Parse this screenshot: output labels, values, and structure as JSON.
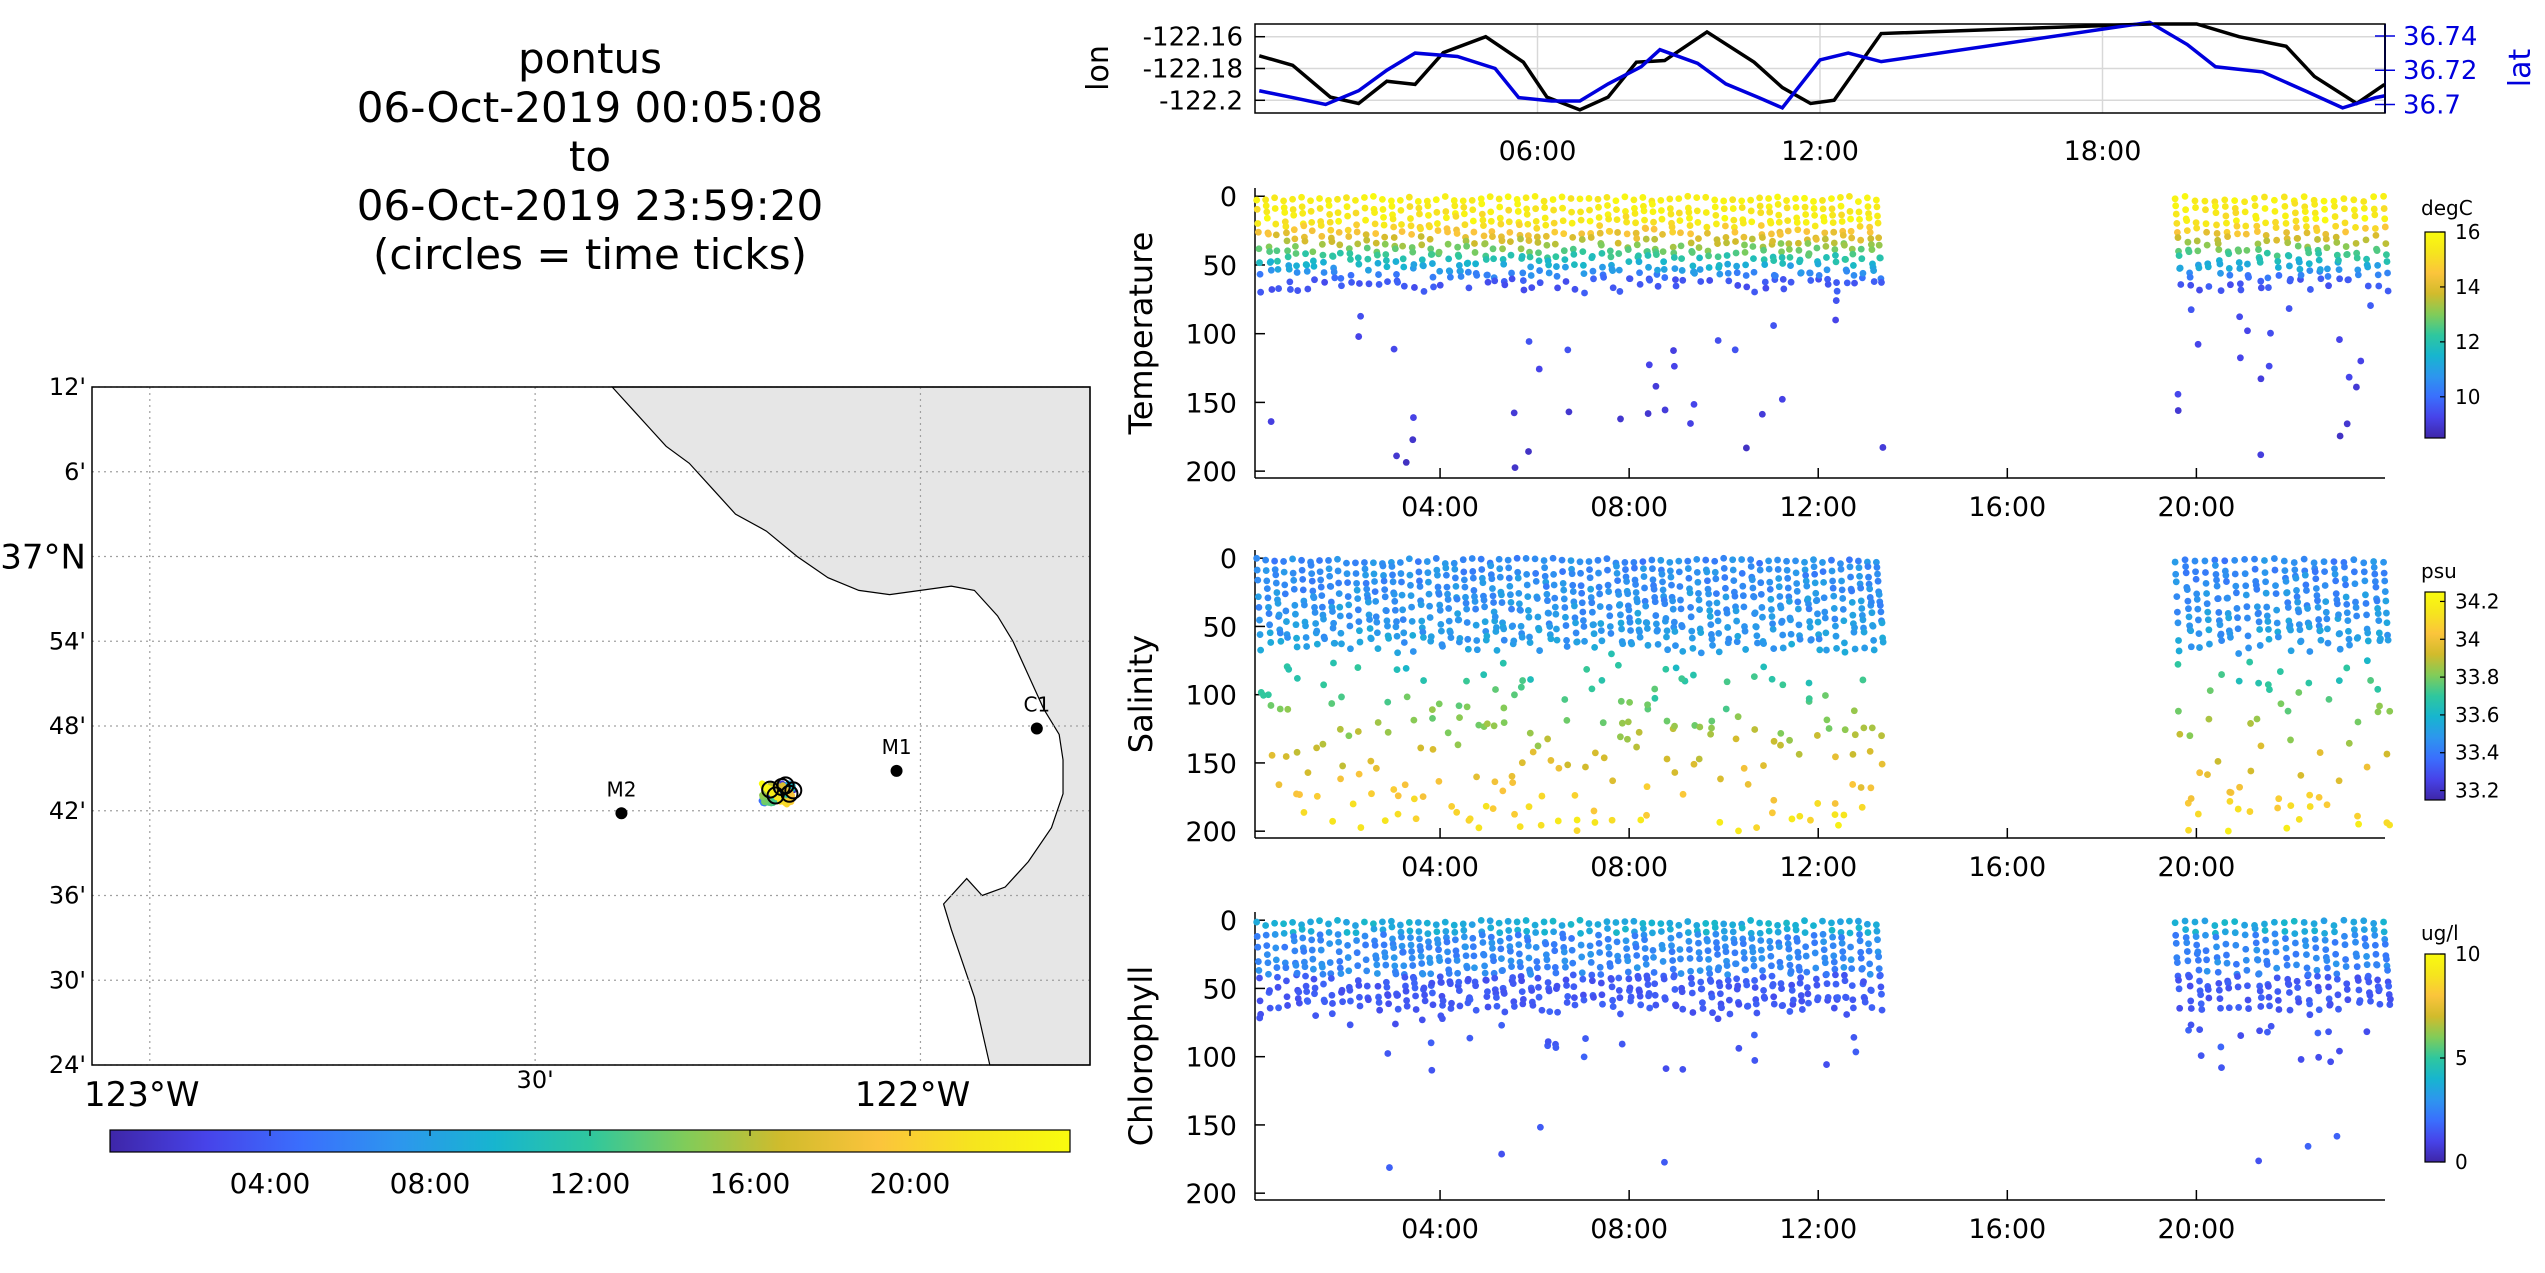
{
  "title": {
    "lines": [
      "pontus",
      "06-Oct-2019 00:05:08",
      "to",
      "06-Oct-2019 23:59:20",
      "(circles = time ticks)"
    ]
  },
  "colors": {
    "lon_line": "#000000",
    "lat_line": "#0000dd",
    "land": "#e6e6e6",
    "grid": "#a0a0a0",
    "colormap": [
      "#3e26a8",
      "#4743e9",
      "#3a6ffd",
      "#2d96ee",
      "#17b5cf",
      "#2fc79e",
      "#81cc59",
      "#d1bb2c",
      "#fbc43c",
      "#f6e51e",
      "#f9fb0e"
    ]
  },
  "map": {
    "lat_ticks": [
      "12'",
      "6'",
      "37°N",
      "54'",
      "48'",
      "42'",
      "36'",
      "30'",
      "24'"
    ],
    "lon_ticks": [
      "123°W",
      "30'",
      "122°W"
    ],
    "stations": [
      {
        "name": "M2",
        "lon": -122.388,
        "lat": 36.697
      },
      {
        "name": "M1",
        "lon": -122.031,
        "lat": 36.747
      },
      {
        "name": "C1",
        "lon": -121.849,
        "lat": 36.797
      }
    ],
    "colorbar_ticks": [
      "04:00",
      "08:00",
      "12:00",
      "16:00",
      "20:00"
    ]
  },
  "chart_data": [
    {
      "type": "line",
      "panel": "lon-lat",
      "ylabel": "lon",
      "ylabel_right": "lat",
      "x_ticks": [
        "06:00",
        "12:00",
        "18:00"
      ],
      "y_ticks": [
        "-122.16",
        "-122.18",
        "-122.2"
      ],
      "y_ticks_right": [
        "36.74",
        "36.72",
        "36.7"
      ],
      "ylim": [
        -122.208,
        -122.152
      ],
      "ylim_right": [
        36.695,
        36.747
      ],
      "xlim": [
        0,
        24
      ],
      "series": [
        {
          "name": "lon",
          "axis": "left",
          "x": [
            0.09,
            0.8,
            1.6,
            2.2,
            2.8,
            3.4,
            4.0,
            4.9,
            5.7,
            6.2,
            6.9,
            7.5,
            8.1,
            8.7,
            9.6,
            10.6,
            11.2,
            11.8,
            12.3,
            13.3,
            19.0,
            20.0,
            20.9,
            21.9,
            22.5,
            23.4,
            23.99
          ],
          "y": [
            -122.172,
            -122.178,
            -122.198,
            -122.202,
            -122.188,
            -122.19,
            -122.17,
            -122.16,
            -122.176,
            -122.198,
            -122.206,
            -122.198,
            -122.176,
            -122.175,
            -122.157,
            -122.176,
            -122.192,
            -122.202,
            -122.2,
            -122.158,
            -122.152,
            -122.152,
            -122.16,
            -122.166,
            -122.185,
            -122.202,
            -122.19
          ]
        },
        {
          "name": "lat",
          "axis": "right",
          "x": [
            0.09,
            0.8,
            1.5,
            2.2,
            2.8,
            3.4,
            4.3,
            5.1,
            5.6,
            6.3,
            6.9,
            7.5,
            8.2,
            8.6,
            9.4,
            10.0,
            10.7,
            11.2,
            12.0,
            12.6,
            13.3,
            19.0,
            19.8,
            20.4,
            21.4,
            22.3,
            23.1,
            23.8,
            23.99
          ],
          "y": [
            36.708,
            36.704,
            36.7,
            36.708,
            36.72,
            36.73,
            36.728,
            36.721,
            36.704,
            36.702,
            36.702,
            36.712,
            36.722,
            36.732,
            36.724,
            36.712,
            36.704,
            36.698,
            36.726,
            36.73,
            36.725,
            36.748,
            36.735,
            36.722,
            36.719,
            36.708,
            36.698,
            36.704,
            36.705
          ]
        }
      ]
    },
    {
      "type": "scatter",
      "panel": "temperature",
      "ylabel": "Temperature",
      "units": "degC",
      "x_ticks": [
        "04:00",
        "08:00",
        "12:00",
        "16:00",
        "20:00"
      ],
      "y_ticks": [
        "0",
        "50",
        "100",
        "150",
        "200"
      ],
      "ylim": [
        0,
        205
      ],
      "clim": [
        8.5,
        16
      ],
      "colorbar_ticks": [
        "10",
        "12",
        "14",
        "16"
      ]
    },
    {
      "type": "scatter",
      "panel": "salinity",
      "ylabel": "Salinity",
      "units": "psu",
      "x_ticks": [
        "04:00",
        "08:00",
        "12:00",
        "16:00",
        "20:00"
      ],
      "y_ticks": [
        "0",
        "50",
        "100",
        "150",
        "200"
      ],
      "ylim": [
        0,
        205
      ],
      "clim": [
        33.15,
        34.25
      ],
      "colorbar_ticks": [
        "33.2",
        "33.4",
        "33.6",
        "33.8",
        "34",
        "34.2"
      ]
    },
    {
      "type": "scatter",
      "panel": "chlorophyll",
      "ylabel": "Chlorophyll",
      "units": "ug/l",
      "x_ticks": [
        "04:00",
        "08:00",
        "12:00",
        "16:00",
        "20:00"
      ],
      "y_ticks": [
        "0",
        "50",
        "100",
        "150",
        "200"
      ],
      "ylim": [
        0,
        205
      ],
      "clim": [
        0,
        10
      ],
      "colorbar_ticks": [
        "0",
        "5",
        "10"
      ]
    }
  ]
}
